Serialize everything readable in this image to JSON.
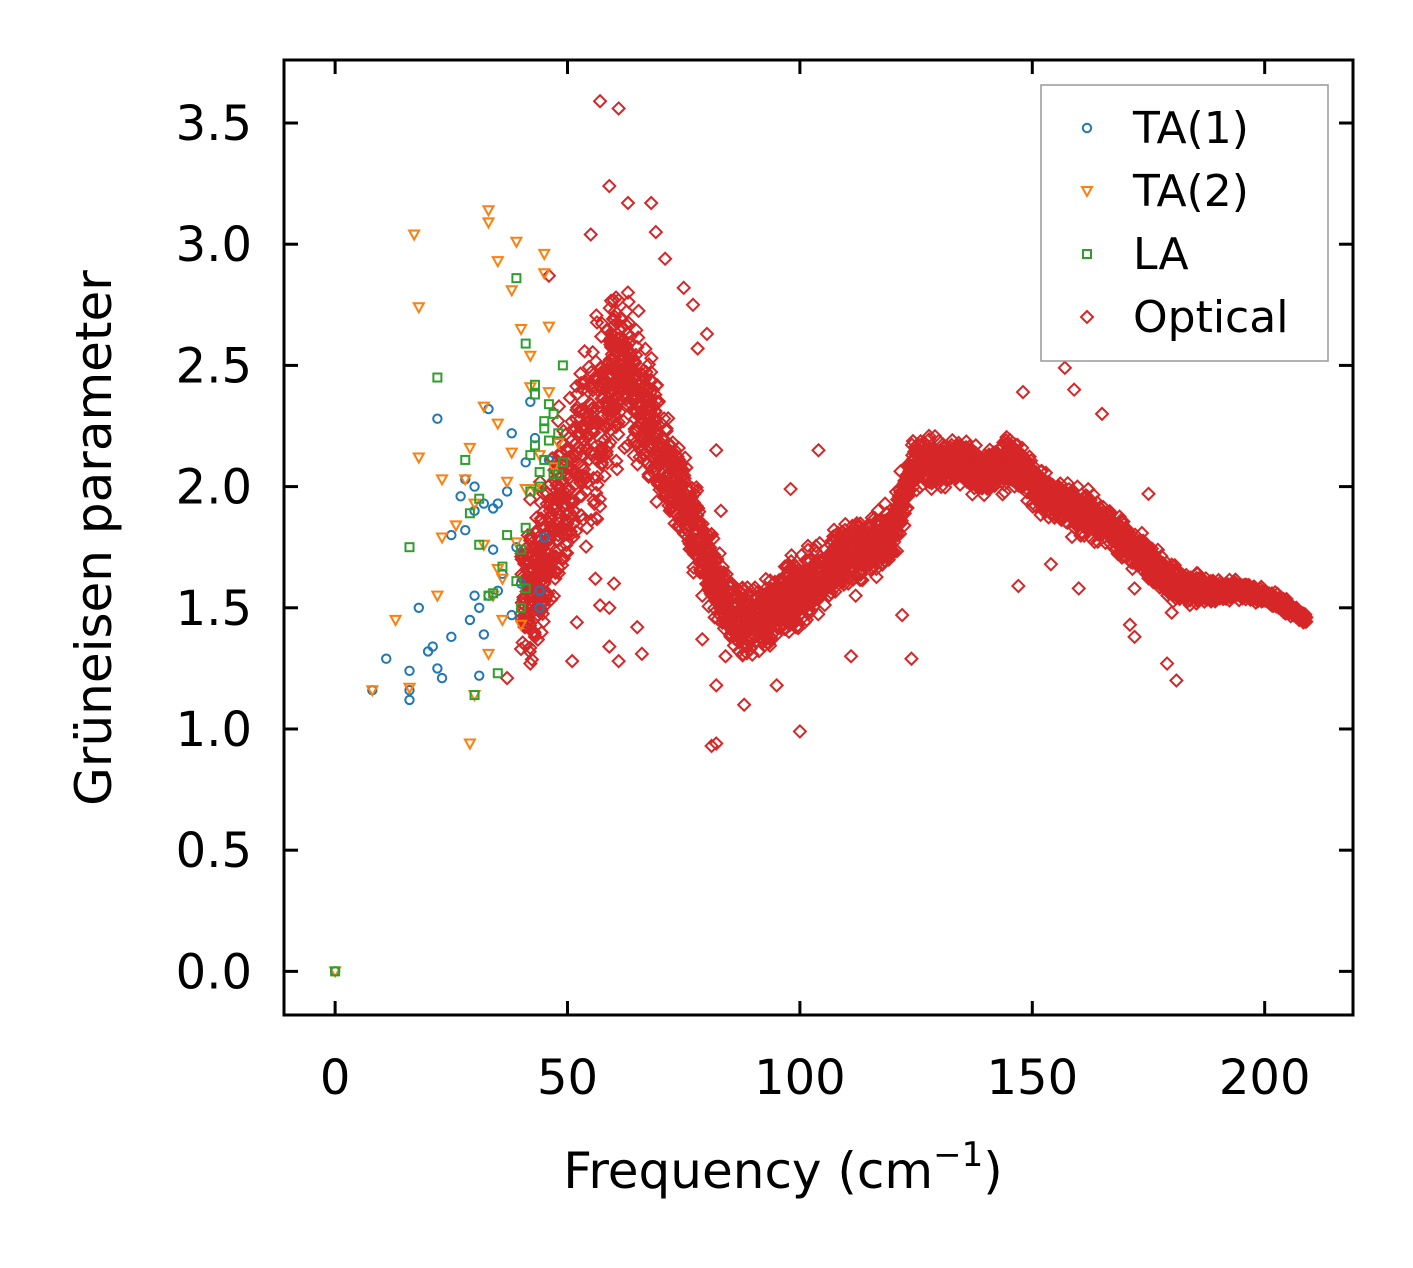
{
  "chart_data": {
    "type": "scatter",
    "title": "",
    "xlabel": "Frequency (cm",
    "xlabel_sup": "−1",
    "xlabel_end": ")",
    "ylabel": "Grüneisen parameter",
    "xlim": [
      -11,
      219
    ],
    "ylim": [
      -0.18,
      3.76
    ],
    "xticks": [
      0,
      50,
      100,
      150,
      200
    ],
    "yticks": [
      0.0,
      0.5,
      1.0,
      1.5,
      2.0,
      2.5,
      3.0,
      3.5
    ],
    "xtick_labels": [
      "0",
      "50",
      "100",
      "150",
      "200"
    ],
    "ytick_labels": [
      "0.0",
      "0.5",
      "1.0",
      "1.5",
      "2.0",
      "2.5",
      "3.0",
      "3.5"
    ],
    "grid": false,
    "legend_position": "top-right",
    "series": [
      {
        "name": "TA(1)",
        "marker": "circle",
        "color": "#1f77b4",
        "points": [
          [
            0,
            0.0
          ],
          [
            8,
            1.16
          ],
          [
            11,
            1.29
          ],
          [
            16,
            1.24
          ],
          [
            16,
            1.12
          ],
          [
            16,
            1.16
          ],
          [
            18,
            1.5
          ],
          [
            20,
            1.32
          ],
          [
            21,
            1.34
          ],
          [
            22,
            1.25
          ],
          [
            22,
            2.28
          ],
          [
            23,
            1.21
          ],
          [
            25,
            1.8
          ],
          [
            25,
            1.38
          ],
          [
            27,
            1.96
          ],
          [
            28,
            1.82
          ],
          [
            28,
            2.03
          ],
          [
            29,
            1.45
          ],
          [
            30,
            1.55
          ],
          [
            30,
            1.9
          ],
          [
            30,
            2.0
          ],
          [
            31,
            1.22
          ],
          [
            31,
            1.5
          ],
          [
            32,
            1.39
          ],
          [
            32,
            1.93
          ],
          [
            33,
            1.55
          ],
          [
            33,
            2.32
          ],
          [
            34,
            1.91
          ],
          [
            34,
            1.74
          ],
          [
            35,
            1.93
          ],
          [
            35,
            1.57
          ],
          [
            36,
            1.64
          ],
          [
            37,
            1.98
          ],
          [
            38,
            2.22
          ],
          [
            38,
            1.47
          ],
          [
            39,
            1.75
          ],
          [
            40,
            1.6
          ],
          [
            41,
            2.1
          ],
          [
            42,
            2.35
          ],
          [
            43,
            2.2
          ],
          [
            44,
            1.5
          ],
          [
            44,
            1.57
          ],
          [
            45,
            1.79
          ],
          [
            46,
            2.11
          ]
        ]
      },
      {
        "name": "TA(2)",
        "marker": "triangle-down",
        "color": "#ff7f0e",
        "points": [
          [
            0,
            0.0
          ],
          [
            8,
            1.16
          ],
          [
            13,
            1.45
          ],
          [
            16,
            1.17
          ],
          [
            17,
            3.04
          ],
          [
            18,
            2.74
          ],
          [
            18,
            2.12
          ],
          [
            22,
            1.55
          ],
          [
            23,
            1.79
          ],
          [
            23,
            2.03
          ],
          [
            26,
            1.84
          ],
          [
            28,
            2.03
          ],
          [
            29,
            2.16
          ],
          [
            29,
            0.94
          ],
          [
            30,
            1.93
          ],
          [
            30,
            1.14
          ],
          [
            32,
            1.76
          ],
          [
            32,
            2.33
          ],
          [
            33,
            3.14
          ],
          [
            33,
            3.09
          ],
          [
            33,
            1.31
          ],
          [
            34,
            1.55
          ],
          [
            35,
            2.26
          ],
          [
            35,
            2.93
          ],
          [
            35,
            1.66
          ],
          [
            36,
            1.62
          ],
          [
            36,
            1.45
          ],
          [
            37,
            2.02
          ],
          [
            38,
            2.14
          ],
          [
            38,
            2.81
          ],
          [
            39,
            3.01
          ],
          [
            39,
            1.77
          ],
          [
            40,
            2.65
          ],
          [
            40,
            1.43
          ],
          [
            41,
            1.99
          ],
          [
            42,
            2.54
          ],
          [
            42,
            2.41
          ],
          [
            43,
            1.99
          ],
          [
            44,
            2.13
          ],
          [
            45,
            2.96
          ],
          [
            45,
            2.88
          ],
          [
            46,
            2.66
          ],
          [
            46,
            2.39
          ],
          [
            47,
            2.08
          ],
          [
            48,
            2.18
          ]
        ]
      },
      {
        "name": "LA",
        "marker": "square",
        "color": "#2ca02c",
        "points": [
          [
            0,
            0.0
          ],
          [
            16,
            1.75
          ],
          [
            22,
            2.45
          ],
          [
            28,
            2.11
          ],
          [
            29,
            1.89
          ],
          [
            30,
            1.14
          ],
          [
            31,
            1.95
          ],
          [
            31,
            1.76
          ],
          [
            33,
            1.55
          ],
          [
            34,
            1.56
          ],
          [
            35,
            1.23
          ],
          [
            36,
            1.67
          ],
          [
            37,
            1.8
          ],
          [
            39,
            2.86
          ],
          [
            39,
            1.61
          ],
          [
            40,
            1.74
          ],
          [
            40,
            1.5
          ],
          [
            41,
            1.83
          ],
          [
            41,
            2.59
          ],
          [
            41,
            1.58
          ],
          [
            42,
            1.98
          ],
          [
            42,
            2.13
          ],
          [
            43,
            2.42
          ],
          [
            43,
            2.38
          ],
          [
            43,
            2.17
          ],
          [
            44,
            2.06
          ],
          [
            44,
            2.0
          ],
          [
            45,
            2.27
          ],
          [
            45,
            2.24
          ],
          [
            45,
            2.11
          ],
          [
            46,
            2.34
          ],
          [
            46,
            2.19
          ],
          [
            47,
            2.05
          ],
          [
            47,
            2.3
          ],
          [
            48,
            2.22
          ],
          [
            48,
            2.05
          ],
          [
            49,
            2.5
          ],
          [
            49,
            2.1
          ]
        ]
      },
      {
        "name": "Optical",
        "marker": "diamond",
        "color": "#d62728",
        "points": [],
        "band_outline": {
          "x": [
            40,
            45,
            50,
            55,
            60,
            63,
            65,
            68,
            70,
            72,
            75,
            80,
            85,
            90,
            95,
            100,
            105,
            110,
            115,
            120,
            123,
            125,
            130,
            135,
            140,
            145,
            150,
            155,
            160,
            165,
            170,
            175,
            180,
            185,
            190,
            195,
            200,
            205,
            209
          ],
          "center": [
            1.55,
            1.7,
            2.0,
            2.2,
            2.45,
            2.5,
            2.35,
            2.25,
            2.15,
            2.05,
            1.95,
            1.7,
            1.45,
            1.45,
            1.5,
            1.55,
            1.65,
            1.72,
            1.75,
            1.8,
            2.0,
            2.1,
            2.1,
            2.1,
            2.05,
            2.1,
            2.02,
            1.95,
            1.9,
            1.85,
            1.78,
            1.7,
            1.6,
            1.58,
            1.57,
            1.57,
            1.55,
            1.5,
            1.45
          ],
          "spread": [
            0.35,
            0.45,
            0.55,
            0.55,
            0.5,
            0.45,
            0.4,
            0.38,
            0.33,
            0.3,
            0.28,
            0.22,
            0.2,
            0.2,
            0.2,
            0.22,
            0.2,
            0.18,
            0.17,
            0.17,
            0.15,
            0.14,
            0.12,
            0.12,
            0.12,
            0.14,
            0.13,
            0.13,
            0.13,
            0.12,
            0.12,
            0.11,
            0.1,
            0.08,
            0.06,
            0.05,
            0.05,
            0.04,
            0.03
          ]
        },
        "outliers": [
          [
            57,
            3.59
          ],
          [
            61,
            3.56
          ],
          [
            59,
            3.24
          ],
          [
            63,
            3.17
          ],
          [
            68,
            3.17
          ],
          [
            55,
            3.04
          ],
          [
            69,
            3.05
          ],
          [
            71,
            2.94
          ],
          [
            75,
            2.82
          ],
          [
            77,
            2.75
          ],
          [
            80,
            2.63
          ],
          [
            46,
            2.87
          ],
          [
            78,
            2.57
          ],
          [
            52,
            2.38
          ],
          [
            82,
            2.15
          ],
          [
            83,
            1.9
          ],
          [
            79,
            1.55
          ],
          [
            79,
            1.37
          ],
          [
            84,
            1.3
          ],
          [
            82,
            1.18
          ],
          [
            81,
            0.93
          ],
          [
            82,
            0.94
          ],
          [
            88,
            1.1
          ],
          [
            95,
            1.18
          ],
          [
            100,
            0.99
          ],
          [
            101,
            1.44
          ],
          [
            98,
            1.99
          ],
          [
            104,
            2.15
          ],
          [
            109,
            1.76
          ],
          [
            111,
            1.3
          ],
          [
            112,
            1.55
          ],
          [
            124,
            1.29
          ],
          [
            122,
            1.47
          ],
          [
            148,
            2.39
          ],
          [
            157,
            2.49
          ],
          [
            159,
            2.4
          ],
          [
            165,
            2.3
          ],
          [
            175,
            1.97
          ],
          [
            180,
            1.48
          ],
          [
            181,
            1.2
          ],
          [
            179,
            1.27
          ],
          [
            172,
            1.38
          ],
          [
            171,
            1.43
          ],
          [
            172,
            1.58
          ],
          [
            147,
            1.59
          ],
          [
            154,
            1.68
          ],
          [
            160,
            1.58
          ],
          [
            66,
            1.31
          ],
          [
            65,
            1.42
          ],
          [
            59,
            1.34
          ],
          [
            61,
            1.28
          ],
          [
            51,
            1.28
          ],
          [
            52,
            1.44
          ],
          [
            41,
            1.44
          ],
          [
            40,
            1.33
          ],
          [
            43,
            1.38
          ],
          [
            42,
            1.27
          ],
          [
            37,
            1.21
          ],
          [
            45,
            1.65
          ],
          [
            48,
            1.8
          ],
          [
            56,
            1.62
          ],
          [
            57,
            1.51
          ],
          [
            59,
            1.5
          ],
          [
            60,
            1.6
          ]
        ]
      }
    ]
  }
}
